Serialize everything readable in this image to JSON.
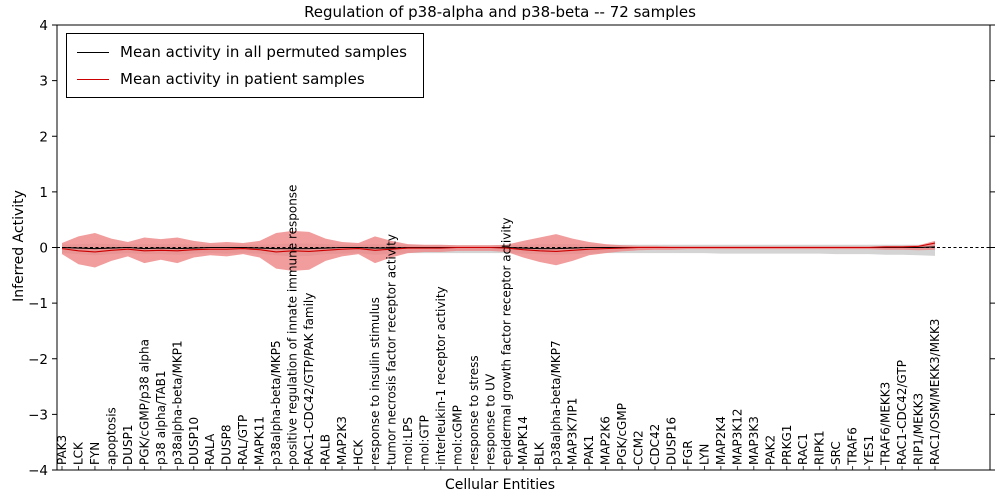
{
  "chart_data": {
    "type": "line",
    "title": "Regulation of p38-alpha and p38-beta -- 72 samples",
    "xlabel": "Cellular Entities",
    "ylabel": "Inferred Activity",
    "ylim": [
      -4,
      4
    ],
    "yticks": [
      -4,
      -3,
      -2,
      -1,
      0,
      1,
      2,
      3,
      4
    ],
    "grid": false,
    "legend_position": "upper left",
    "categories": [
      "PAK3",
      "LCK",
      "FYN",
      "apoptosis",
      "DUSP1",
      "PGK/cGMP/p38 alpha",
      "p38 alpha/TAB1",
      "p38alpha-beta/MKP1",
      "DUSP10",
      "RALA",
      "DUSP8",
      "RAL/GTP",
      "MAPK11",
      "p38alpha-beta/MKP5",
      "positive regulation of innate immune response",
      "RAC1-CDC42/GTP/PAK family",
      "RALB",
      "MAP2K3",
      "HCK",
      "response to insulin stimulus",
      "tumor necrosis factor receptor activity",
      "mol:LPS",
      "mol:GTP",
      "interleukin-1 receptor activity",
      "mol:cGMP",
      "response to stress",
      "response to UV",
      "epidermal growth factor receptor activity",
      "MAPK14",
      "BLK",
      "p38alpha-beta/MKP7",
      "MAP3K7IP1",
      "PAK1",
      "MAP2K6",
      "PGK/cGMP",
      "CCM2",
      "CDC42",
      "DUSP16",
      "FGR",
      "LYN",
      "MAP2K4",
      "MAP3K12",
      "MAP3K3",
      "PAK2",
      "PRKG1",
      "RAC1",
      "RIPK1",
      "SRC",
      "TRAF6",
      "YES1",
      "TRAF6/MEKK3",
      "RAC1-CDC42/GTP",
      "RIP1/MEKK3",
      "RAC1/OSM/MEKK3/MKK3"
    ],
    "series": [
      {
        "name": "Mean activity in all permuted samples",
        "color": "#000000",
        "values": [
          0,
          -0.01,
          -0.02,
          -0.01,
          0,
          -0.02,
          -0.01,
          -0.02,
          -0.01,
          0,
          0,
          0,
          -0.01,
          -0.02,
          -0.02,
          -0.02,
          -0.01,
          0,
          0,
          -0.01,
          -0.01,
          0,
          0,
          0,
          0,
          0,
          0,
          0,
          -0.01,
          -0.02,
          -0.02,
          -0.01,
          0,
          0,
          0,
          0,
          0,
          0,
          0,
          0,
          0,
          0,
          0,
          0,
          0,
          0,
          0,
          0,
          0,
          0,
          0,
          0,
          0,
          0.01
        ]
      },
      {
        "name": "Mean activity in patient samples",
        "color": "#cc0000",
        "values": [
          -0.02,
          -0.06,
          -0.08,
          -0.05,
          -0.03,
          -0.06,
          -0.05,
          -0.06,
          -0.04,
          -0.03,
          -0.03,
          -0.02,
          -0.04,
          -0.08,
          -0.06,
          -0.07,
          -0.05,
          -0.03,
          -0.02,
          -0.05,
          -0.03,
          -0.01,
          -0.01,
          -0.01,
          0,
          0,
          0,
          -0.01,
          -0.04,
          -0.06,
          -0.07,
          -0.05,
          -0.03,
          -0.02,
          -0.01,
          0,
          0,
          0,
          0,
          0,
          0,
          0,
          0,
          0,
          0,
          0,
          0,
          0,
          0,
          0,
          0.01,
          0.01,
          0.02,
          0.08
        ]
      }
    ],
    "bands": [
      {
        "name": "permuted-samples-range",
        "color": "#bdbdbd",
        "opacity": 0.65,
        "upper": [
          0.05,
          0.06,
          0.07,
          0.06,
          0.05,
          0.06,
          0.06,
          0.06,
          0.05,
          0.05,
          0.05,
          0.05,
          0.05,
          0.06,
          0.07,
          0.07,
          0.06,
          0.05,
          0.05,
          0.06,
          0.05,
          0.05,
          0.04,
          0.04,
          0.04,
          0.04,
          0.04,
          0.04,
          0.05,
          0.06,
          0.06,
          0.06,
          0.05,
          0.05,
          0.05,
          0.05,
          0.05,
          0.05,
          0.05,
          0.05,
          0.05,
          0.05,
          0.05,
          0.05,
          0.05,
          0.05,
          0.05,
          0.05,
          0.05,
          0.05,
          0.05,
          0.05,
          0.05,
          0.06
        ],
        "lower": [
          -0.1,
          -0.12,
          -0.14,
          -0.12,
          -0.1,
          -0.12,
          -0.12,
          -0.13,
          -0.11,
          -0.1,
          -0.11,
          -0.1,
          -0.11,
          -0.14,
          -0.16,
          -0.15,
          -0.12,
          -0.11,
          -0.1,
          -0.13,
          -0.11,
          -0.1,
          -0.1,
          -0.1,
          -0.1,
          -0.1,
          -0.1,
          -0.1,
          -0.11,
          -0.12,
          -0.13,
          -0.12,
          -0.11,
          -0.1,
          -0.1,
          -0.1,
          -0.1,
          -0.1,
          -0.1,
          -0.1,
          -0.11,
          -0.11,
          -0.11,
          -0.11,
          -0.11,
          -0.11,
          -0.11,
          -0.12,
          -0.12,
          -0.12,
          -0.13,
          -0.13,
          -0.14,
          -0.15
        ]
      },
      {
        "name": "patient-samples-range",
        "color": "#ee8585",
        "opacity": 0.8,
        "upper": [
          0.08,
          0.2,
          0.26,
          0.16,
          0.1,
          0.18,
          0.15,
          0.18,
          0.12,
          0.08,
          0.1,
          0.08,
          0.12,
          0.26,
          0.3,
          0.28,
          0.16,
          0.1,
          0.08,
          0.2,
          0.12,
          0.06,
          0.05,
          0.05,
          0.04,
          0.04,
          0.04,
          0.05,
          0.12,
          0.18,
          0.24,
          0.16,
          0.1,
          0.06,
          0.04,
          0.03,
          0.03,
          0.02,
          0.02,
          0.02,
          0.02,
          0.02,
          0.02,
          0.02,
          0.02,
          0.02,
          0.02,
          0.02,
          0.02,
          0.02,
          0.03,
          0.03,
          0.04,
          0.12
        ],
        "lower": [
          -0.12,
          -0.3,
          -0.36,
          -0.24,
          -0.16,
          -0.28,
          -0.22,
          -0.28,
          -0.18,
          -0.14,
          -0.16,
          -0.12,
          -0.18,
          -0.38,
          -0.42,
          -0.4,
          -0.24,
          -0.16,
          -0.12,
          -0.28,
          -0.18,
          -0.1,
          -0.08,
          -0.08,
          -0.06,
          -0.06,
          -0.06,
          -0.08,
          -0.18,
          -0.26,
          -0.32,
          -0.24,
          -0.14,
          -0.1,
          -0.07,
          -0.05,
          -0.04,
          -0.04,
          -0.03,
          -0.03,
          -0.03,
          -0.03,
          -0.03,
          -0.03,
          -0.03,
          -0.03,
          -0.03,
          -0.03,
          -0.03,
          -0.03,
          -0.04,
          -0.04,
          -0.05,
          -0.04
        ]
      }
    ]
  },
  "legend": [
    {
      "label": "Mean activity in all permuted samples",
      "color": "#000000"
    },
    {
      "label": "Mean activity in patient samples",
      "color": "#cc0000"
    }
  ]
}
